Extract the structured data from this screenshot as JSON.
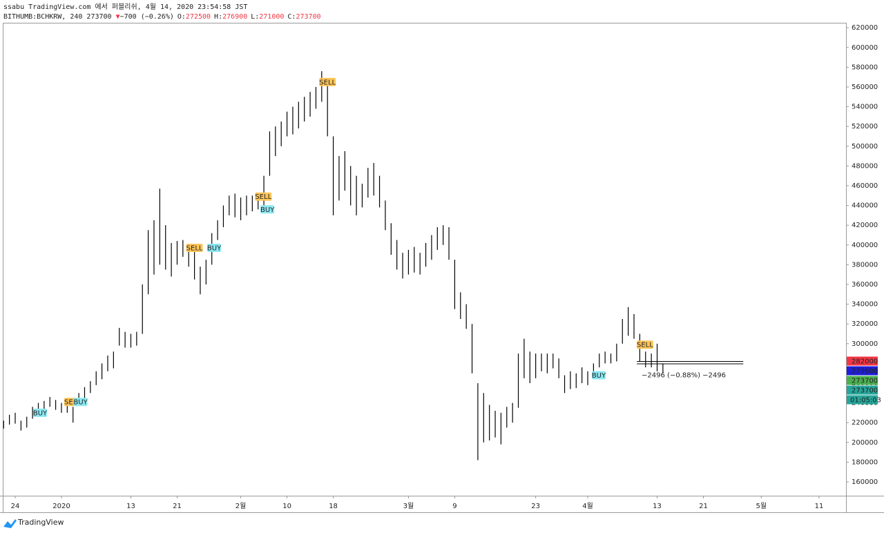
{
  "header": {
    "publisher": "ssabu TradingView.com 에서 퍼블리쉬, 4월 14, 2020 23:54:58 JST",
    "symbol": "BITHUMB:BCHKRW, 240",
    "last": "273700",
    "change": "−700 (−0.26%)",
    "ohlc": [
      {
        "key": "O:",
        "value": "272500"
      },
      {
        "key": "H:",
        "value": "276900"
      },
      {
        "key": "L:",
        "value": "271000"
      },
      {
        "key": "C:",
        "value": "273700"
      }
    ]
  },
  "chart_data": {
    "type": "bar",
    "color": "#000000",
    "x": [
      -2,
      -1,
      0,
      1,
      2,
      3,
      4,
      5,
      6,
      7,
      8,
      9,
      10,
      11,
      12,
      13,
      14,
      15,
      16,
      17,
      18,
      19,
      20,
      21,
      22,
      23,
      24,
      25,
      26,
      27,
      28,
      29,
      30,
      31,
      32,
      33,
      34,
      35,
      36,
      37,
      38,
      39,
      40,
      41,
      42,
      43,
      44,
      45,
      46,
      47,
      48,
      49,
      50,
      51,
      52,
      53,
      54,
      55,
      56,
      57,
      58,
      59,
      60,
      61,
      62,
      63,
      64,
      65,
      66,
      67,
      68,
      69,
      70,
      71,
      72,
      73,
      74,
      75,
      76,
      77,
      78,
      79,
      80,
      81,
      82,
      83,
      84,
      85,
      86,
      87,
      88,
      89,
      90,
      91,
      92,
      93,
      94,
      95,
      96,
      97,
      98,
      99,
      100,
      101,
      102,
      103,
      104,
      105,
      106,
      107,
      108,
      109,
      110,
      111,
      112
    ],
    "low": [
      214000,
      218000,
      219000,
      212000,
      215000,
      224000,
      228000,
      230000,
      236000,
      233000,
      230000,
      230000,
      220000,
      238000,
      244000,
      250000,
      258000,
      264000,
      272000,
      275000,
      298000,
      296000,
      296000,
      298000,
      310000,
      350000,
      370000,
      380000,
      375000,
      368000,
      380000,
      388000,
      378000,
      365000,
      350000,
      360000,
      380000,
      405000,
      418000,
      430000,
      428000,
      425000,
      430000,
      434000,
      436000,
      440000,
      470000,
      490000,
      500000,
      510000,
      512000,
      518000,
      525000,
      530000,
      538000,
      545000,
      510000,
      430000,
      445000,
      455000,
      440000,
      430000,
      438000,
      448000,
      450000,
      438000,
      415000,
      390000,
      375000,
      366000,
      370000,
      372000,
      370000,
      378000,
      385000,
      395000,
      400000,
      385000,
      335000,
      325000,
      315000,
      270000,
      182000,
      200000,
      202000,
      205000,
      198000,
      215000,
      220000,
      235000,
      265000,
      260000,
      265000,
      272000,
      270000,
      275000,
      265000,
      250000,
      254000,
      255000,
      260000,
      258000,
      265000,
      276000,
      280000,
      280000,
      282000,
      300000,
      308000,
      305000,
      282000,
      276000,
      276000,
      272000,
      270000
    ],
    "high": [
      222000,
      228000,
      230000,
      222000,
      226000,
      236000,
      240000,
      242000,
      246000,
      243000,
      240000,
      240000,
      236000,
      250000,
      256000,
      262000,
      272000,
      280000,
      288000,
      292000,
      316000,
      312000,
      310000,
      312000,
      360000,
      415000,
      425000,
      457000,
      420000,
      402000,
      404000,
      405000,
      400000,
      395000,
      378000,
      385000,
      412000,
      425000,
      440000,
      450000,
      452000,
      448000,
      450000,
      450000,
      452000,
      470000,
      515000,
      520000,
      525000,
      535000,
      540000,
      545000,
      550000,
      555000,
      560000,
      576000,
      568000,
      510000,
      490000,
      495000,
      480000,
      470000,
      462000,
      478000,
      483000,
      470000,
      445000,
      422000,
      405000,
      392000,
      395000,
      398000,
      392000,
      402000,
      410000,
      418000,
      420000,
      418000,
      385000,
      352000,
      340000,
      320000,
      260000,
      250000,
      238000,
      232000,
      230000,
      236000,
      240000,
      290000,
      305000,
      292000,
      290000,
      290000,
      290000,
      290000,
      285000,
      268000,
      272000,
      270000,
      276000,
      272000,
      280000,
      290000,
      292000,
      290000,
      300000,
      325000,
      337000,
      330000,
      310000,
      292000,
      290000,
      300000,
      280000
    ],
    "xlim": [
      -2.03,
      143.66
    ],
    "ylim": [
      146000,
      625000
    ],
    "xticks": [
      {
        "value": 0,
        "label": "24"
      },
      {
        "value": 8,
        "label": "2020"
      },
      {
        "value": 20,
        "label": "13"
      },
      {
        "value": 28,
        "label": "21"
      },
      {
        "value": 39,
        "label": "2월"
      },
      {
        "value": 47,
        "label": "10"
      },
      {
        "value": 55,
        "label": "18"
      },
      {
        "value": 68,
        "label": "3월"
      },
      {
        "value": 76,
        "label": "9"
      },
      {
        "value": 90,
        "label": "23"
      },
      {
        "value": 99,
        "label": "4월"
      },
      {
        "value": 111,
        "label": "13"
      },
      {
        "value": 119,
        "label": "21"
      },
      {
        "value": 129,
        "label": "5월"
      },
      {
        "value": 139,
        "label": "11"
      }
    ],
    "yticks": [
      160000,
      180000,
      200000,
      220000,
      240000,
      260000,
      280000,
      300000,
      320000,
      340000,
      360000,
      380000,
      400000,
      420000,
      440000,
      460000,
      480000,
      500000,
      520000,
      540000,
      560000,
      580000,
      600000,
      620000
    ],
    "annotations": [
      {
        "text": "BUY",
        "x": 4.3,
        "y": 230000
      },
      {
        "text": "SELL",
        "x": 9.9,
        "y": 241000
      },
      {
        "text": "BUY",
        "x": 11.3,
        "y": 241000
      },
      {
        "text": "SELL",
        "x": 31,
        "y": 397000
      },
      {
        "text": "BUY",
        "x": 34.4,
        "y": 397000
      },
      {
        "text": "SELL",
        "x": 42.9,
        "y": 449000
      },
      {
        "text": "BUY",
        "x": 43.6,
        "y": 436000
      },
      {
        "text": "SELL",
        "x": 54,
        "y": 565000
      },
      {
        "text": "BUY",
        "x": 100.9,
        "y": 268000
      },
      {
        "text": "SELL",
        "x": 108.9,
        "y": 299000
      }
    ],
    "levels": {
      "values": [
        282000,
        279600
      ],
      "x": [
        107.5,
        125.9
      ]
    },
    "measure": {
      "text": "−2496 (−0.88%) −2496",
      "x": 115.6,
      "y": 268000
    },
    "price_labels": [
      {
        "value": 282000,
        "color": "#f23645"
      },
      {
        "value": 279600,
        "color": "#1e1ed8"
      },
      {
        "value": 273700,
        "color": "#4caf50"
      },
      {
        "value": 273700,
        "color": "#26a69a"
      }
    ],
    "countdown": {
      "text": "01:05:03",
      "color": "#26a69a"
    }
  },
  "footer": {
    "logo": "TradingView"
  }
}
